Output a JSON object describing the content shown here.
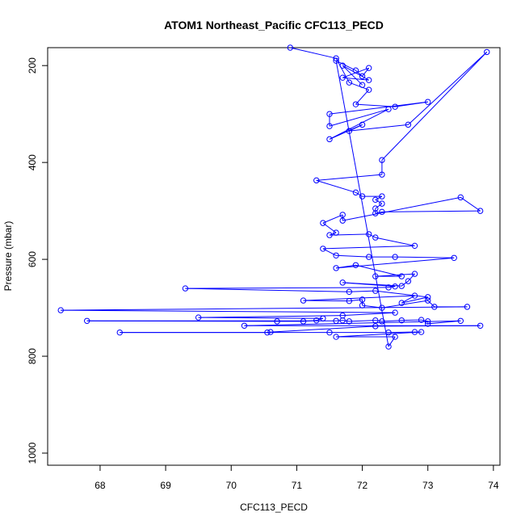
{
  "chart_data": {
    "type": "scatter",
    "title": "ATOM1 Northeast_Pacific CFC113_PECD",
    "xlabel": "CFC113_PECD",
    "ylabel": "Pressure (mbar)",
    "xlim": [
      67.2,
      74.1
    ],
    "ylim": [
      1025,
      163
    ],
    "y_inverted": true,
    "grid": false,
    "legend": "none",
    "colors": {
      "series": "#0000ff",
      "axes": "#000000"
    },
    "x_ticks": [
      {
        "v": 68,
        "label": "68"
      },
      {
        "v": 69,
        "label": "69"
      },
      {
        "v": 70,
        "label": "70"
      },
      {
        "v": 71,
        "label": "71"
      },
      {
        "v": 72,
        "label": "72"
      },
      {
        "v": 73,
        "label": "73"
      },
      {
        "v": 74,
        "label": "74"
      }
    ],
    "y_ticks": [
      {
        "v": 200,
        "label": "200"
      },
      {
        "v": 400,
        "label": "400"
      },
      {
        "v": 600,
        "label": "600"
      },
      {
        "v": 800,
        "label": "800"
      },
      {
        "v": 1000,
        "label": "1000"
      }
    ],
    "series": [
      {
        "marker": "open-circle",
        "line": true,
        "points": [
          [
            70.9,
            163
          ],
          [
            71.6,
            185
          ],
          [
            71.8,
            235
          ],
          [
            72.1,
            250
          ],
          [
            71.9,
            280
          ],
          [
            72.5,
            285
          ],
          [
            73.0,
            275
          ],
          [
            71.5,
            300
          ],
          [
            71.5,
            325
          ],
          [
            72.4,
            290
          ],
          [
            71.5,
            352
          ],
          [
            72.0,
            322
          ],
          [
            71.8,
            335
          ],
          [
            72.7,
            322
          ],
          [
            73.9,
            172
          ],
          [
            72.3,
            395
          ],
          [
            72.3,
            425
          ],
          [
            71.3,
            437
          ],
          [
            71.9,
            462
          ],
          [
            72.0,
            470
          ],
          [
            72.3,
            470
          ],
          [
            72.2,
            477
          ],
          [
            72.3,
            485
          ],
          [
            72.2,
            495
          ],
          [
            72.2,
            505
          ],
          [
            72.3,
            502
          ],
          [
            73.8,
            500
          ],
          [
            73.5,
            472
          ],
          [
            71.7,
            520
          ],
          [
            71.7,
            508
          ],
          [
            71.4,
            525
          ],
          [
            71.6,
            545
          ],
          [
            71.5,
            550
          ],
          [
            72.1,
            548
          ],
          [
            72.2,
            555
          ],
          [
            72.8,
            572
          ],
          [
            71.4,
            578
          ],
          [
            71.6,
            592
          ],
          [
            72.1,
            595
          ],
          [
            72.5,
            595
          ],
          [
            73.4,
            597
          ],
          [
            71.6,
            618
          ],
          [
            71.9,
            612
          ],
          [
            72.6,
            635
          ],
          [
            72.2,
            635
          ],
          [
            72.8,
            630
          ],
          [
            72.7,
            645
          ],
          [
            72.6,
            655
          ],
          [
            71.7,
            648
          ],
          [
            72.5,
            656
          ],
          [
            72.4,
            658
          ],
          [
            69.3,
            660
          ],
          [
            71.8,
            667
          ],
          [
            72.2,
            665
          ],
          [
            73.0,
            678
          ],
          [
            72.6,
            690
          ],
          [
            72.8,
            675
          ],
          [
            71.1,
            685
          ],
          [
            71.8,
            686
          ],
          [
            72.0,
            683
          ],
          [
            72.0,
            695
          ],
          [
            72.3,
            700
          ],
          [
            73.0,
            685
          ],
          [
            73.1,
            698
          ],
          [
            73.6,
            698
          ],
          [
            67.4,
            705
          ],
          [
            72.5,
            710
          ],
          [
            71.7,
            716
          ],
          [
            69.5,
            720
          ],
          [
            71.4,
            722
          ],
          [
            71.3,
            726
          ],
          [
            71.1,
            728
          ],
          [
            70.7,
            728
          ],
          [
            67.8,
            727
          ],
          [
            71.6,
            727
          ],
          [
            71.7,
            726
          ],
          [
            71.8,
            728
          ],
          [
            72.2,
            726
          ],
          [
            72.3,
            728
          ],
          [
            72.6,
            726
          ],
          [
            72.9,
            725
          ],
          [
            73.0,
            728
          ],
          [
            73.0,
            733
          ],
          [
            73.5,
            727
          ],
          [
            70.2,
            737
          ],
          [
            73.8,
            737
          ],
          [
            72.2,
            738
          ],
          [
            70.6,
            750
          ],
          [
            70.55,
            751
          ],
          [
            68.3,
            751
          ],
          [
            71.5,
            751
          ],
          [
            72.4,
            751
          ],
          [
            72.8,
            750
          ],
          [
            72.9,
            750
          ],
          [
            71.6,
            760
          ],
          [
            72.5,
            760
          ],
          [
            72.4,
            780
          ],
          [
            71.6,
            190
          ],
          [
            71.9,
            210
          ],
          [
            72.0,
            222
          ],
          [
            72.1,
            205
          ],
          [
            71.7,
            225
          ],
          [
            72.1,
            230
          ],
          [
            71.7,
            200
          ],
          [
            72.0,
            240
          ]
        ]
      }
    ]
  }
}
